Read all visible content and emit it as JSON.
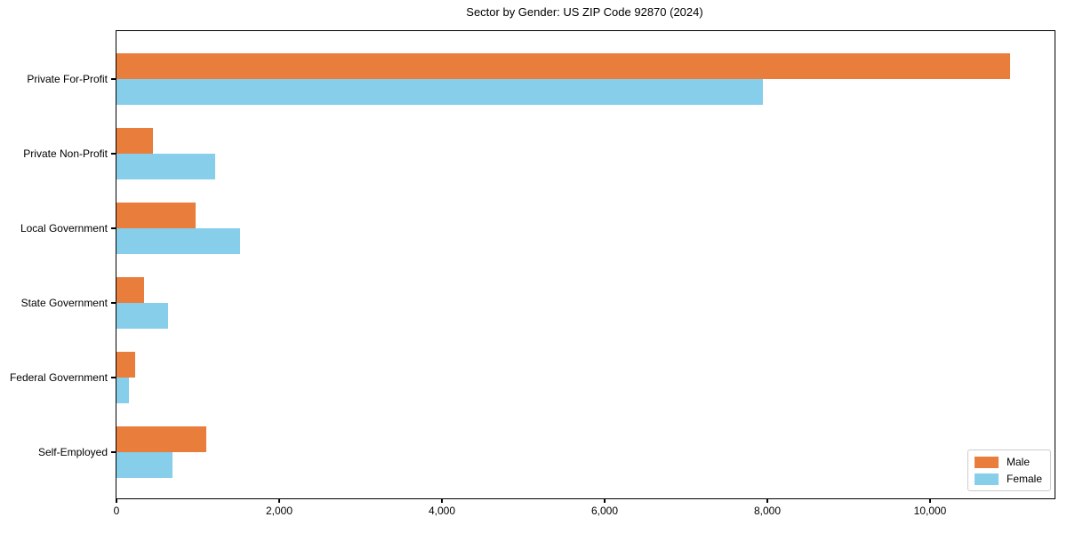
{
  "title": "Sector by Gender: US ZIP Code 92870 (2024)",
  "chart_data": {
    "type": "bar",
    "orientation": "horizontal",
    "title": "Sector by Gender: US ZIP Code 92870 (2024)",
    "categories": [
      "Private For-Profit",
      "Private Non-Profit",
      "Local Government",
      "State Government",
      "Federal Government",
      "Self-Employed"
    ],
    "series": [
      {
        "name": "Male",
        "color": "#e87d3c",
        "values": [
          10980,
          445,
          970,
          335,
          230,
          1100
        ]
      },
      {
        "name": "Female",
        "color": "#87ceeb",
        "values": [
          7940,
          1210,
          1515,
          635,
          155,
          685
        ]
      }
    ],
    "xlabel": "",
    "ylabel": "",
    "xlim": [
      0,
      11530
    ],
    "xticks": [
      0,
      2000,
      4000,
      6000,
      8000,
      10000
    ],
    "xtick_labels": [
      "0",
      "2,000",
      "4,000",
      "6,000",
      "8,000",
      "10,000"
    ],
    "grid": false,
    "legend_position": "lower right",
    "legend_entries": [
      "Male",
      "Female"
    ]
  }
}
